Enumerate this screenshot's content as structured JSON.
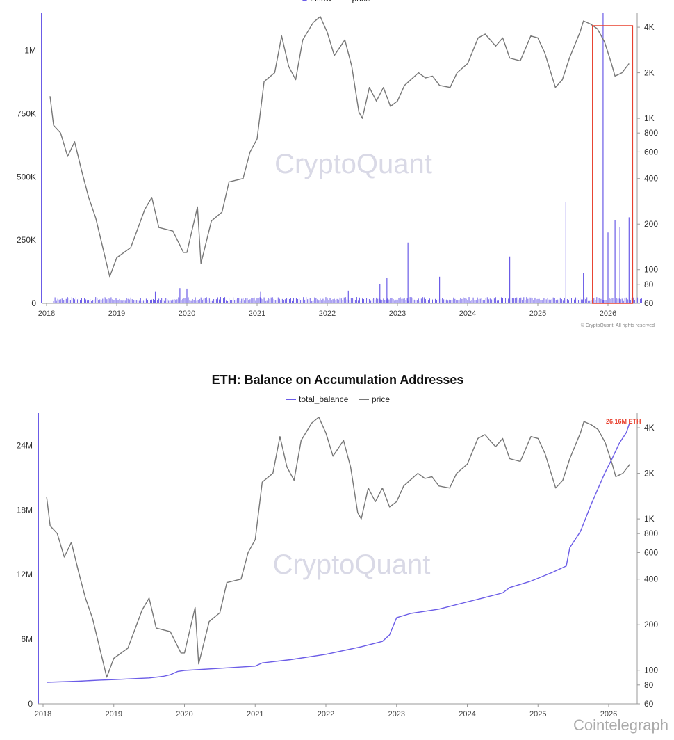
{
  "colors": {
    "inflow": "#6b5ce7",
    "price": "#777777",
    "highlight": "#e8402e",
    "axis": "#6b5ce7"
  },
  "watermark": "CryptoQuant",
  "brand": "Cointelegraph",
  "chart_data": [
    {
      "type": "bar",
      "title": "",
      "legend": [
        "inflow",
        "price"
      ],
      "legend_position": "top",
      "xlabel": "",
      "ylabel": "",
      "x_ticks": [
        "2018",
        "2019",
        "2020",
        "2021",
        "2022",
        "2023",
        "2024",
        "2025",
        "2026"
      ],
      "y_left_ticks": [
        "0",
        "250K",
        "500K",
        "750K",
        "1M"
      ],
      "y_right_ticks": [
        "60",
        "80",
        "100",
        "200",
        "400",
        "600",
        "800",
        "1K",
        "2K",
        "4K"
      ],
      "y_right_scale": "log",
      "y_left_range": [
        0,
        1150000
      ],
      "y_right_range": [
        60,
        5000
      ],
      "x_range": [
        2018.0,
        2026.6
      ],
      "copyright": "© CryptoQuant. All rights reserved",
      "highlight_range": [
        2025.78,
        2026.35
      ],
      "series": [
        {
          "name": "inflow",
          "type": "bar",
          "points": [
            [
              2019.0,
              12000
            ],
            [
              2019.55,
              45000
            ],
            [
              2019.9,
              60000
            ],
            [
              2020.0,
              58000
            ],
            [
              2021.05,
              45000
            ],
            [
              2022.3,
              50000
            ],
            [
              2022.75,
              75000
            ],
            [
              2022.85,
              100000
            ],
            [
              2023.15,
              240000
            ],
            [
              2023.6,
              105000
            ],
            [
              2024.6,
              185000
            ],
            [
              2025.4,
              400000
            ],
            [
              2025.65,
              120000
            ],
            [
              2025.93,
              1150000
            ],
            [
              2026.0,
              280000
            ],
            [
              2026.1,
              330000
            ],
            [
              2026.17,
              300000
            ],
            [
              2026.3,
              340000
            ]
          ]
        },
        {
          "name": "price",
          "type": "line",
          "points": [
            [
              2018.05,
              1400
            ],
            [
              2018.1,
              900
            ],
            [
              2018.2,
              800
            ],
            [
              2018.3,
              560
            ],
            [
              2018.4,
              700
            ],
            [
              2018.5,
              450
            ],
            [
              2018.6,
              300
            ],
            [
              2018.7,
              220
            ],
            [
              2018.9,
              90
            ],
            [
              2019.0,
              120
            ],
            [
              2019.2,
              140
            ],
            [
              2019.4,
              250
            ],
            [
              2019.5,
              300
            ],
            [
              2019.6,
              190
            ],
            [
              2019.8,
              180
            ],
            [
              2019.95,
              130
            ],
            [
              2020.0,
              130
            ],
            [
              2020.15,
              260
            ],
            [
              2020.2,
              110
            ],
            [
              2020.35,
              210
            ],
            [
              2020.5,
              240
            ],
            [
              2020.6,
              380
            ],
            [
              2020.8,
              400
            ],
            [
              2020.9,
              600
            ],
            [
              2021.0,
              730
            ],
            [
              2021.1,
              1750
            ],
            [
              2021.25,
              2000
            ],
            [
              2021.35,
              3500
            ],
            [
              2021.45,
              2200
            ],
            [
              2021.55,
              1800
            ],
            [
              2021.65,
              3300
            ],
            [
              2021.8,
              4300
            ],
            [
              2021.9,
              4700
            ],
            [
              2022.0,
              3700
            ],
            [
              2022.1,
              2600
            ],
            [
              2022.25,
              3300
            ],
            [
              2022.35,
              2200
            ],
            [
              2022.45,
              1100
            ],
            [
              2022.5,
              1000
            ],
            [
              2022.6,
              1600
            ],
            [
              2022.7,
              1300
            ],
            [
              2022.8,
              1600
            ],
            [
              2022.9,
              1200
            ],
            [
              2023.0,
              1300
            ],
            [
              2023.1,
              1650
            ],
            [
              2023.3,
              2000
            ],
            [
              2023.4,
              1850
            ],
            [
              2023.5,
              1900
            ],
            [
              2023.6,
              1650
            ],
            [
              2023.75,
              1600
            ],
            [
              2023.85,
              2000
            ],
            [
              2024.0,
              2300
            ],
            [
              2024.15,
              3400
            ],
            [
              2024.25,
              3600
            ],
            [
              2024.4,
              3000
            ],
            [
              2024.5,
              3400
            ],
            [
              2024.6,
              2500
            ],
            [
              2024.75,
              2400
            ],
            [
              2024.9,
              3500
            ],
            [
              2025.0,
              3400
            ],
            [
              2025.1,
              2700
            ],
            [
              2025.25,
              1600
            ],
            [
              2025.35,
              1800
            ],
            [
              2025.45,
              2500
            ],
            [
              2025.6,
              3700
            ],
            [
              2025.65,
              4400
            ],
            [
              2025.75,
              4200
            ],
            [
              2025.85,
              3900
            ],
            [
              2025.95,
              3200
            ],
            [
              2026.05,
              2300
            ],
            [
              2026.1,
              1900
            ],
            [
              2026.2,
              2000
            ],
            [
              2026.3,
              2300
            ]
          ]
        }
      ]
    },
    {
      "type": "line",
      "title": "ETH: Balance on Accumulation Addresses",
      "legend": [
        "total_balance",
        "price"
      ],
      "legend_position": "top",
      "xlabel": "",
      "ylabel": "",
      "x_ticks": [
        "2018",
        "2019",
        "2020",
        "2021",
        "2022",
        "2023",
        "2024",
        "2025",
        "2026"
      ],
      "y_left_ticks": [
        "0",
        "6M",
        "12M",
        "18M",
        "24M"
      ],
      "y_right_ticks": [
        "60",
        "80",
        "100",
        "200",
        "400",
        "600",
        "800",
        "1K",
        "2K",
        "4K"
      ],
      "y_right_scale": "log",
      "y_left_range": [
        0,
        27000000
      ],
      "y_right_range": [
        60,
        5000
      ],
      "x_range": [
        2018.0,
        2026.6
      ],
      "annotation": "26.16M ETH",
      "series": [
        {
          "name": "total_balance",
          "type": "line",
          "points": [
            [
              2018.05,
              2000000
            ],
            [
              2018.5,
              2100000
            ],
            [
              2018.8,
              2200000
            ],
            [
              2019.0,
              2250000
            ],
            [
              2019.5,
              2400000
            ],
            [
              2019.7,
              2550000
            ],
            [
              2019.8,
              2700000
            ],
            [
              2019.9,
              3000000
            ],
            [
              2020.0,
              3100000
            ],
            [
              2020.5,
              3300000
            ],
            [
              2021.0,
              3500000
            ],
            [
              2021.1,
              3800000
            ],
            [
              2021.5,
              4100000
            ],
            [
              2022.0,
              4600000
            ],
            [
              2022.5,
              5300000
            ],
            [
              2022.8,
              5800000
            ],
            [
              2022.9,
              6400000
            ],
            [
              2023.0,
              8000000
            ],
            [
              2023.2,
              8400000
            ],
            [
              2023.4,
              8600000
            ],
            [
              2023.6,
              8800000
            ],
            [
              2023.9,
              9300000
            ],
            [
              2024.2,
              9800000
            ],
            [
              2024.5,
              10300000
            ],
            [
              2024.6,
              10800000
            ],
            [
              2024.9,
              11400000
            ],
            [
              2025.2,
              12200000
            ],
            [
              2025.4,
              12800000
            ],
            [
              2025.45,
              14500000
            ],
            [
              2025.6,
              16000000
            ],
            [
              2025.75,
              18500000
            ],
            [
              2025.85,
              20000000
            ],
            [
              2025.95,
              21500000
            ],
            [
              2026.05,
              22800000
            ],
            [
              2026.15,
              24200000
            ],
            [
              2026.25,
              25200000
            ],
            [
              2026.3,
              26160000
            ]
          ]
        },
        {
          "name": "price",
          "type": "line",
          "points": [
            [
              2018.05,
              1400
            ],
            [
              2018.1,
              900
            ],
            [
              2018.2,
              800
            ],
            [
              2018.3,
              560
            ],
            [
              2018.4,
              700
            ],
            [
              2018.5,
              450
            ],
            [
              2018.6,
              300
            ],
            [
              2018.7,
              220
            ],
            [
              2018.9,
              90
            ],
            [
              2019.0,
              120
            ],
            [
              2019.2,
              140
            ],
            [
              2019.4,
              250
            ],
            [
              2019.5,
              300
            ],
            [
              2019.6,
              190
            ],
            [
              2019.8,
              180
            ],
            [
              2019.95,
              130
            ],
            [
              2020.0,
              130
            ],
            [
              2020.15,
              260
            ],
            [
              2020.2,
              110
            ],
            [
              2020.35,
              210
            ],
            [
              2020.5,
              240
            ],
            [
              2020.6,
              380
            ],
            [
              2020.8,
              400
            ],
            [
              2020.9,
              600
            ],
            [
              2021.0,
              730
            ],
            [
              2021.1,
              1750
            ],
            [
              2021.25,
              2000
            ],
            [
              2021.35,
              3500
            ],
            [
              2021.45,
              2200
            ],
            [
              2021.55,
              1800
            ],
            [
              2021.65,
              3300
            ],
            [
              2021.8,
              4300
            ],
            [
              2021.9,
              4700
            ],
            [
              2022.0,
              3700
            ],
            [
              2022.1,
              2600
            ],
            [
              2022.25,
              3300
            ],
            [
              2022.35,
              2200
            ],
            [
              2022.45,
              1100
            ],
            [
              2022.5,
              1000
            ],
            [
              2022.6,
              1600
            ],
            [
              2022.7,
              1300
            ],
            [
              2022.8,
              1600
            ],
            [
              2022.9,
              1200
            ],
            [
              2023.0,
              1300
            ],
            [
              2023.1,
              1650
            ],
            [
              2023.3,
              2000
            ],
            [
              2023.4,
              1850
            ],
            [
              2023.5,
              1900
            ],
            [
              2023.6,
              1650
            ],
            [
              2023.75,
              1600
            ],
            [
              2023.85,
              2000
            ],
            [
              2024.0,
              2300
            ],
            [
              2024.15,
              3400
            ],
            [
              2024.25,
              3600
            ],
            [
              2024.4,
              3000
            ],
            [
              2024.5,
              3400
            ],
            [
              2024.6,
              2500
            ],
            [
              2024.75,
              2400
            ],
            [
              2024.9,
              3500
            ],
            [
              2025.0,
              3400
            ],
            [
              2025.1,
              2700
            ],
            [
              2025.25,
              1600
            ],
            [
              2025.35,
              1800
            ],
            [
              2025.45,
              2500
            ],
            [
              2025.6,
              3700
            ],
            [
              2025.65,
              4400
            ],
            [
              2025.75,
              4200
            ],
            [
              2025.85,
              3900
            ],
            [
              2025.95,
              3200
            ],
            [
              2026.05,
              2300
            ],
            [
              2026.1,
              1900
            ],
            [
              2026.2,
              2000
            ],
            [
              2026.3,
              2300
            ]
          ]
        }
      ]
    }
  ]
}
